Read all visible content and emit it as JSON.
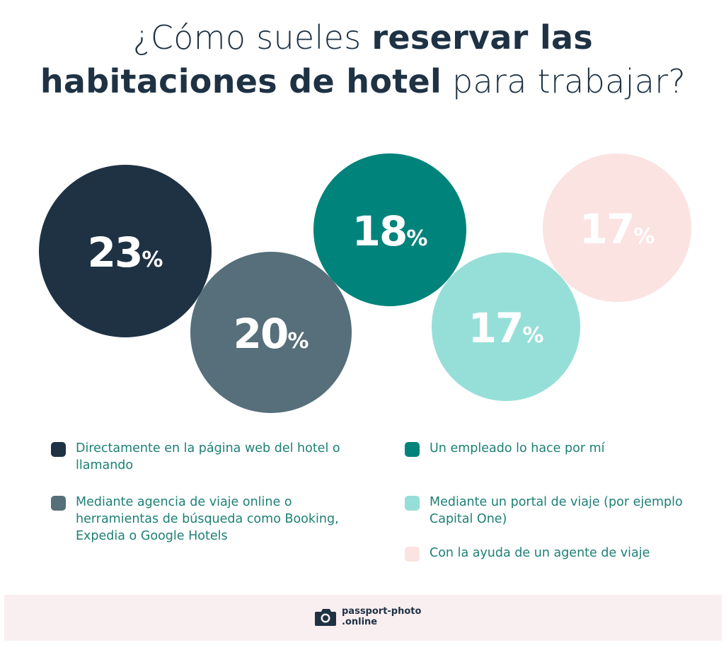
{
  "title": {
    "line1_light": "¿Cómo sueles ",
    "line1_bold": "reservar las",
    "line2_bold": "habitaciones de hotel",
    "line2_light": " para trabajar?"
  },
  "chart_data": {
    "type": "bubble",
    "unit": "%",
    "series": [
      {
        "label": "Directamente en la página web del hotel o llamando",
        "value": 23,
        "color": "#1e3244",
        "text_color": "#ffffff"
      },
      {
        "label": "Mediante agencia de viaje online o herramientas de búsqueda como Booking, Expedia o Google Hotels",
        "value": 20,
        "color": "#566f7a",
        "text_color": "#ffffff"
      },
      {
        "label": "Un empleado lo hace por mí",
        "value": 18,
        "color": "#00837b",
        "text_color": "#ffffff"
      },
      {
        "label": "Mediante un portal de viaje (por ejemplo Capital One)",
        "value": 17,
        "color": "#96dfd8",
        "text_color": "#ffffff"
      },
      {
        "label": "Con la ayuda de un agente de viaje",
        "value": 17,
        "color": "#fbe3e2",
        "text_color": "#ffffff"
      }
    ]
  },
  "legend": {
    "items": [
      {
        "label": "Directamente en la página web del hotel o llamando",
        "color": "#1e3244"
      },
      {
        "label": "Mediante agencia de viaje online o herramientas de búsqueda como Booking, Expedia o Google Hotels",
        "color": "#566f7a"
      },
      {
        "label": "Un empleado lo hace por mí",
        "color": "#00837b"
      },
      {
        "label": "Mediante un portal de viaje (por ejemplo Capital One)",
        "color": "#96dfd8"
      },
      {
        "label": "Con la ayuda de un agente de viaje",
        "color": "#fbe3e2"
      }
    ]
  },
  "footer": {
    "logo_line1": "passport-photo",
    "logo_line2": ".online",
    "logo_icon": "camera-icon"
  }
}
